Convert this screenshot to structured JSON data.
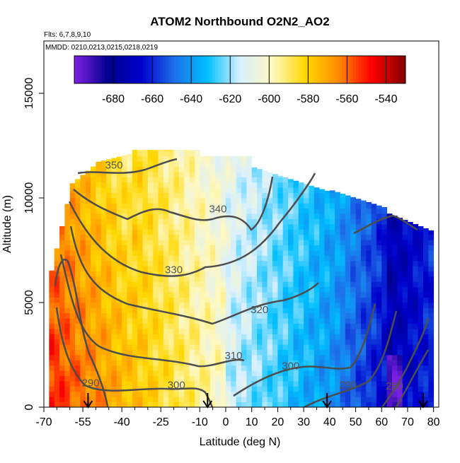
{
  "chart_data": {
    "type": "heatmap",
    "title": "ATOM2 Northbound O2N2_AO2",
    "flights_note": "Flts: 6,7,8,9,10",
    "dates_note": "MMDD: 0210,0213,0215,0218,0219",
    "xlabel": "Latitude (deg N)",
    "ylabel": "Altitude (m)",
    "xlim": [
      -70,
      82
    ],
    "ylim": [
      0,
      17500
    ],
    "x_ticks": [
      -70,
      -55,
      -40,
      -25,
      -10,
      0,
      10,
      20,
      30,
      40,
      50,
      60,
      70,
      80
    ],
    "x_tick_labels": [
      "-70",
      "-55",
      "-40",
      "-25",
      "-10",
      "0",
      "10",
      "20",
      "30",
      "40",
      "50",
      "60",
      "70",
      "80"
    ],
    "y_ticks": [
      0,
      5000,
      10000,
      15000
    ],
    "y_tick_labels": [
      "0",
      "5000",
      "10000",
      "15000"
    ],
    "colorbar": {
      "min": -700,
      "max": -530,
      "ticks": [
        -680,
        -660,
        -640,
        -620,
        -600,
        -580,
        -560,
        -540
      ],
      "tick_labels": [
        "-680",
        "-660",
        "-640",
        "-620",
        "-600",
        "-580",
        "-560",
        "-540"
      ],
      "colors": [
        "#7a1fe0",
        "#00008b",
        "#0000cd",
        "#1e6fe8",
        "#00bfff",
        "#d8f0ff",
        "#fff8c0",
        "#ffd700",
        "#ff8c00",
        "#ff0000",
        "#8b0000"
      ]
    },
    "contours": [
      {
        "level": "290",
        "label_x": -52,
        "label_y": 1000
      },
      {
        "level": "300",
        "label_x": -19,
        "label_y": 900
      },
      {
        "level": "300",
        "label_x": 25,
        "label_y": 1800
      },
      {
        "level": "290",
        "label_x": 47,
        "label_y": 900
      },
      {
        "level": "280",
        "label_x": 65,
        "label_y": 850
      },
      {
        "level": "310",
        "label_x": 3,
        "label_y": 2300
      },
      {
        "level": "320",
        "label_x": 13,
        "label_y": 4500
      },
      {
        "level": "330",
        "label_x": -20,
        "label_y": 6400
      },
      {
        "level": "340",
        "label_x": -3,
        "label_y": 9300
      },
      {
        "level": "350",
        "label_x": -43,
        "label_y": 11400
      }
    ],
    "arrows_x": [
      -53,
      -7,
      39,
      76
    ]
  }
}
